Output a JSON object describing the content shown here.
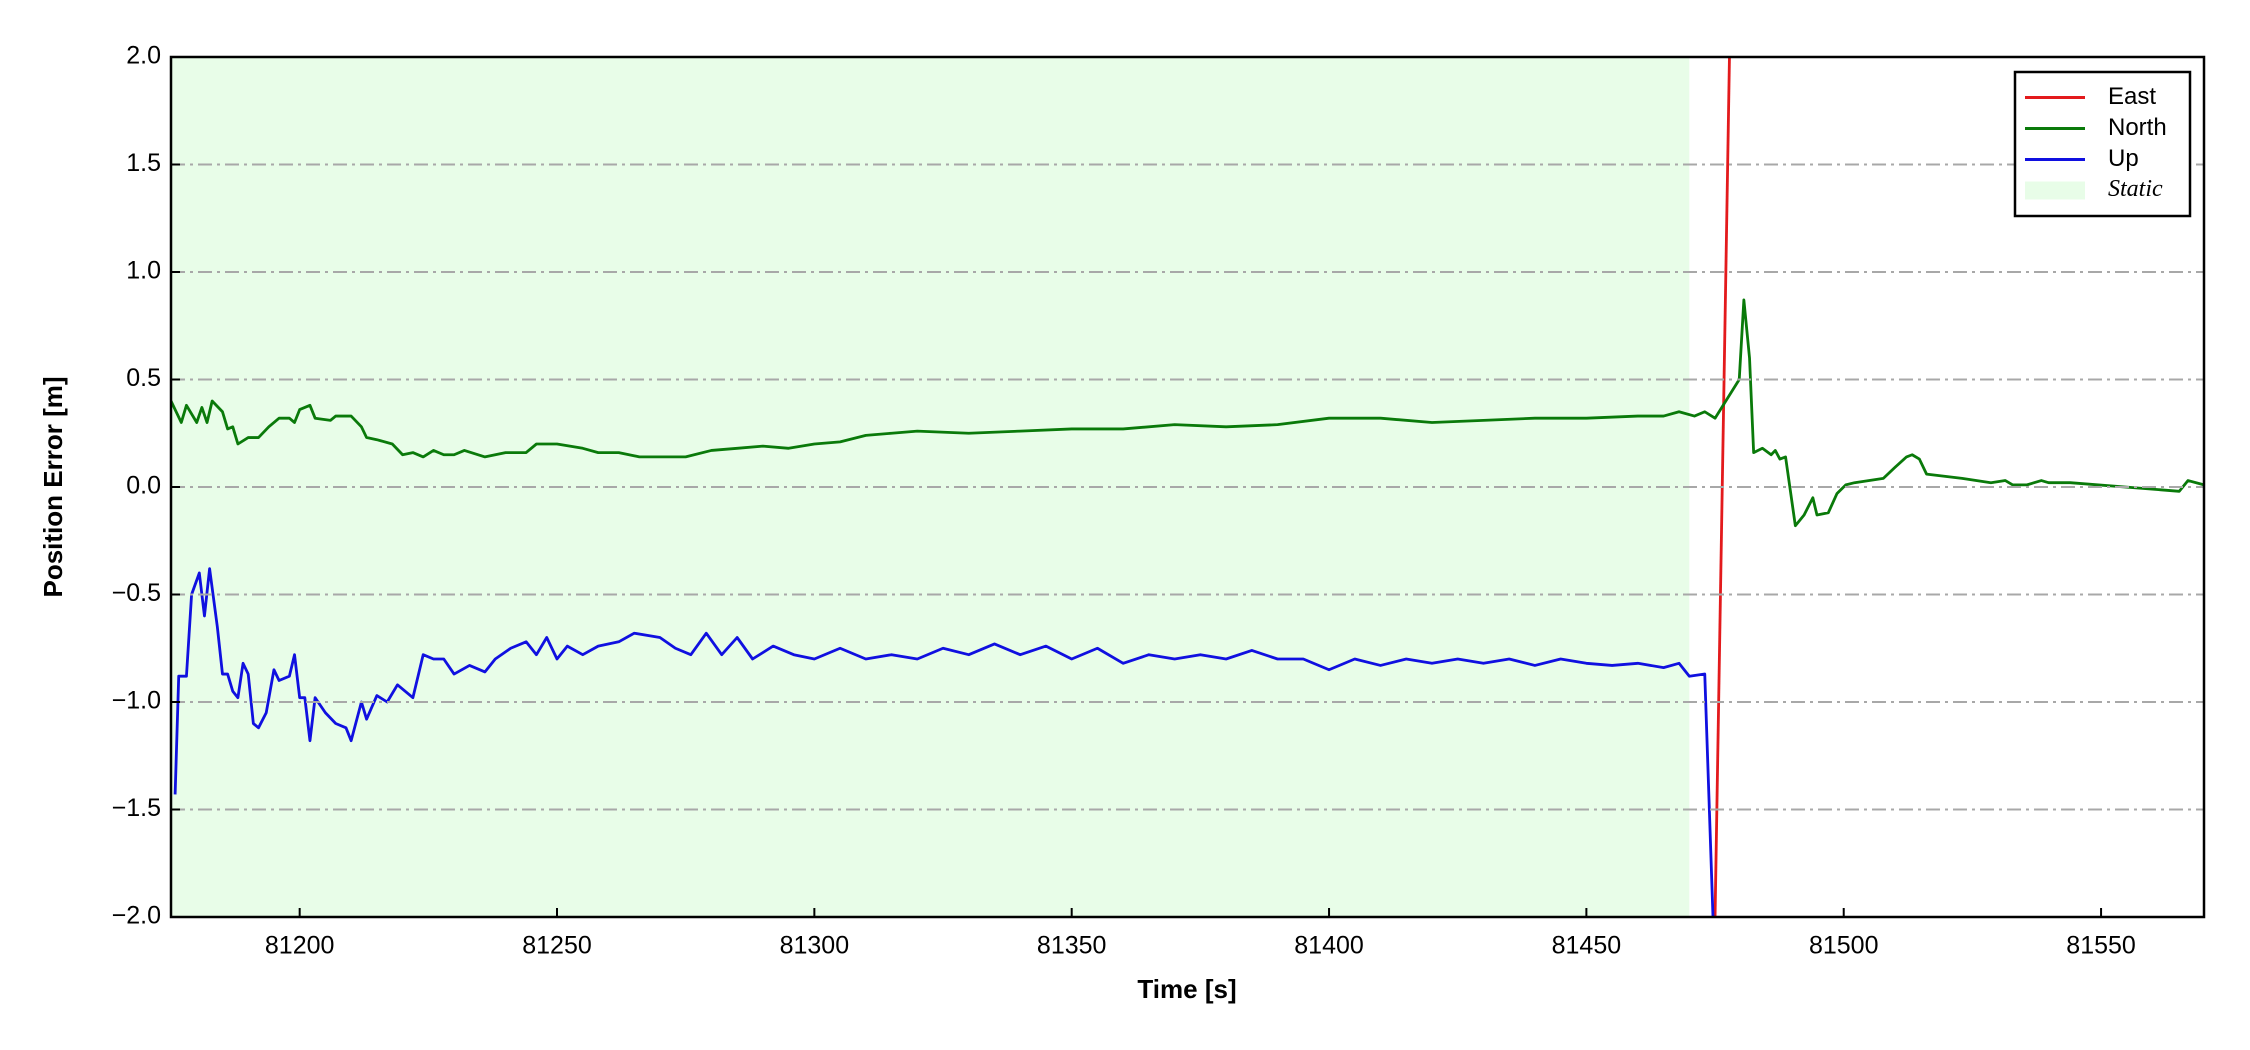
{
  "chart_data": {
    "type": "line",
    "xlabel": "Time [s]",
    "ylabel": "Position Error [m]",
    "xlim": [
      81175,
      81570
    ],
    "ylim": [
      -2,
      2
    ],
    "xticks": [
      81200,
      81250,
      81300,
      81350,
      81400,
      81450,
      81500,
      81550
    ],
    "yticks": [
      {
        "value": -2,
        "label": "−2.0"
      },
      {
        "value": -1.5,
        "label": "−1.5"
      },
      {
        "value": -1,
        "label": "−1.0"
      },
      {
        "value": -0.5,
        "label": "−0.5"
      },
      {
        "value": 0,
        "label": "0.0"
      },
      {
        "value": 0.5,
        "label": "0.5"
      },
      {
        "value": 1,
        "label": "1.0"
      },
      {
        "value": 1.5,
        "label": "1.5"
      },
      {
        "value": 2,
        "label": "2.0"
      }
    ],
    "grid": true,
    "legend": "upper right",
    "shaded_region": {
      "label": "Static",
      "xlim": [
        81175,
        81470
      ],
      "color": "#e8fde8"
    },
    "series": [
      {
        "name": "East",
        "color": "#e31a1c",
        "x": [
          81475,
          81477.8
        ],
        "values": [
          -2,
          2
        ]
      },
      {
        "name": "North",
        "color": "#0a7a0a",
        "x": [
          81175,
          81177,
          81178,
          81180,
          81181,
          81182,
          81183,
          81185,
          81186,
          81187,
          81188,
          81190,
          81192,
          81194,
          81196,
          81198,
          81199,
          81200,
          81202,
          81203,
          81206,
          81207,
          81210,
          81212,
          81213,
          81215,
          81218,
          81220,
          81222,
          81224,
          81226,
          81228,
          81230,
          81232,
          81236,
          81240,
          81244,
          81246,
          81250,
          81255,
          81258,
          81262,
          81266,
          81270,
          81275,
          81280,
          81285,
          81290,
          81295,
          81300,
          81305,
          81310,
          81315,
          81320,
          81330,
          81340,
          81350,
          81360,
          81370,
          81380,
          81390,
          81400,
          81410,
          81420,
          81430,
          81440,
          81450,
          81460,
          81465,
          81468,
          81471,
          81473,
          81475,
          81479.7,
          81480.6,
          81481.7,
          81482.5,
          81484.2,
          81485.9,
          81486.7,
          81487.6,
          81488.7,
          81490.6,
          81492.3,
          81494,
          81494.8,
          81497,
          81498.7,
          81500.4,
          81502.1,
          81507.7,
          81509.9,
          81512.2,
          81513.3,
          81514.7,
          81516.1,
          81523,
          81528.6,
          81531.4,
          81532.8,
          81535.6,
          81538.4,
          81539.8,
          81544,
          81565.2,
          81566.9,
          81570
        ],
        "values": [
          0.4,
          0.3,
          0.38,
          0.3,
          0.37,
          0.3,
          0.4,
          0.35,
          0.27,
          0.28,
          0.2,
          0.23,
          0.23,
          0.28,
          0.32,
          0.32,
          0.3,
          0.36,
          0.38,
          0.32,
          0.31,
          0.33,
          0.33,
          0.28,
          0.23,
          0.22,
          0.2,
          0.15,
          0.16,
          0.14,
          0.17,
          0.15,
          0.15,
          0.17,
          0.14,
          0.16,
          0.16,
          0.2,
          0.2,
          0.18,
          0.16,
          0.16,
          0.14,
          0.14,
          0.14,
          0.17,
          0.18,
          0.19,
          0.18,
          0.2,
          0.21,
          0.24,
          0.25,
          0.26,
          0.25,
          0.26,
          0.27,
          0.27,
          0.29,
          0.28,
          0.29,
          0.32,
          0.32,
          0.3,
          0.31,
          0.32,
          0.32,
          0.33,
          0.33,
          0.35,
          0.33,
          0.35,
          0.32,
          0.5,
          0.87,
          0.6,
          0.16,
          0.18,
          0.15,
          0.17,
          0.13,
          0.14,
          -0.18,
          -0.13,
          -0.05,
          -0.13,
          -0.12,
          -0.03,
          0.01,
          0.02,
          0.04,
          0.09,
          0.14,
          0.15,
          0.13,
          0.06,
          0.04,
          0.02,
          0.03,
          0.01,
          0.01,
          0.03,
          0.02,
          0.02,
          -0.02,
          0.03,
          0.01
        ]
      },
      {
        "name": "Up",
        "color": "#1010e0",
        "x": [
          81175.8,
          81176.5,
          81178,
          81179,
          81180.5,
          81181.5,
          81182.5,
          81184,
          81185,
          81186,
          81187,
          81188,
          81189,
          81190,
          81191,
          81192,
          81193.5,
          81195,
          81196,
          81198,
          81199,
          81200,
          81201,
          81202,
          81203,
          81205,
          81207,
          81209,
          81210,
          81212,
          81213,
          81215,
          81217,
          81219,
          81222,
          81224,
          81226,
          81228,
          81230,
          81233,
          81236,
          81238,
          81241,
          81244,
          81246,
          81248,
          81250,
          81252,
          81255,
          81258,
          81262,
          81265,
          81270,
          81273,
          81276,
          81279,
          81282,
          81285,
          81288,
          81292,
          81296,
          81300,
          81305,
          81310,
          81315,
          81320,
          81325,
          81330,
          81335,
          81340,
          81345,
          81350,
          81355,
          81360,
          81365,
          81370,
          81375,
          81380,
          81385,
          81390,
          81395,
          81400,
          81405,
          81410,
          81415,
          81420,
          81425,
          81430,
          81435,
          81440,
          81445,
          81450,
          81455,
          81460,
          81465,
          81468,
          81470,
          81473,
          81474.6
        ],
        "values": [
          -1.43,
          -0.88,
          -0.88,
          -0.5,
          -0.4,
          -0.6,
          -0.38,
          -0.65,
          -0.87,
          -0.87,
          -0.95,
          -0.98,
          -0.82,
          -0.87,
          -1.1,
          -1.12,
          -1.05,
          -0.85,
          -0.9,
          -0.88,
          -0.78,
          -0.98,
          -0.98,
          -1.18,
          -0.98,
          -1.05,
          -1.1,
          -1.12,
          -1.18,
          -1,
          -1.08,
          -0.97,
          -1,
          -0.92,
          -0.98,
          -0.78,
          -0.8,
          -0.8,
          -0.87,
          -0.83,
          -0.86,
          -0.8,
          -0.75,
          -0.72,
          -0.78,
          -0.7,
          -0.8,
          -0.74,
          -0.78,
          -0.74,
          -0.72,
          -0.68,
          -0.7,
          -0.75,
          -0.78,
          -0.68,
          -0.78,
          -0.7,
          -0.8,
          -0.74,
          -0.78,
          -0.8,
          -0.75,
          -0.8,
          -0.78,
          -0.8,
          -0.75,
          -0.78,
          -0.73,
          -0.78,
          -0.74,
          -0.8,
          -0.75,
          -0.82,
          -0.78,
          -0.8,
          -0.78,
          -0.8,
          -0.76,
          -0.8,
          -0.8,
          -0.85,
          -0.8,
          -0.83,
          -0.8,
          -0.82,
          -0.8,
          -0.82,
          -0.8,
          -0.83,
          -0.8,
          -0.82,
          -0.83,
          -0.82,
          -0.84,
          -0.82,
          -0.88,
          -0.87,
          -2
        ]
      }
    ]
  }
}
